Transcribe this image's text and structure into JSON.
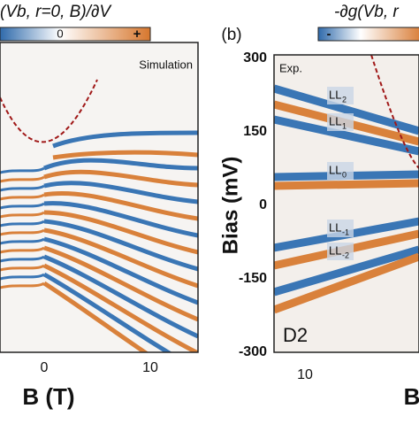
{
  "left_panel": {
    "title": "(Vb, r=0, B)/∂V",
    "colorbar_labels": [
      "0",
      "+"
    ],
    "tag": "Simulation",
    "x_ticks": [
      "0",
      "10"
    ],
    "x_label": "B (T)"
  },
  "right_panel": {
    "letter": "(b)",
    "title": "-∂g(Vb, r",
    "colorbar_labels": [
      "-"
    ],
    "tag": "Exp.",
    "sample": "D2",
    "y_ticks": [
      "300",
      "150",
      "0",
      "-150",
      "-300"
    ],
    "y_label": "Bias (mV)",
    "x_ticks": [
      "10"
    ],
    "x_label": "B",
    "levels": [
      {
        "name": "LL",
        "sub": "2"
      },
      {
        "name": "LL",
        "sub": "1"
      },
      {
        "name": "LL",
        "sub": "0"
      },
      {
        "name": "LL",
        "sub": "-1"
      },
      {
        "name": "LL",
        "sub": "-2"
      }
    ]
  }
}
